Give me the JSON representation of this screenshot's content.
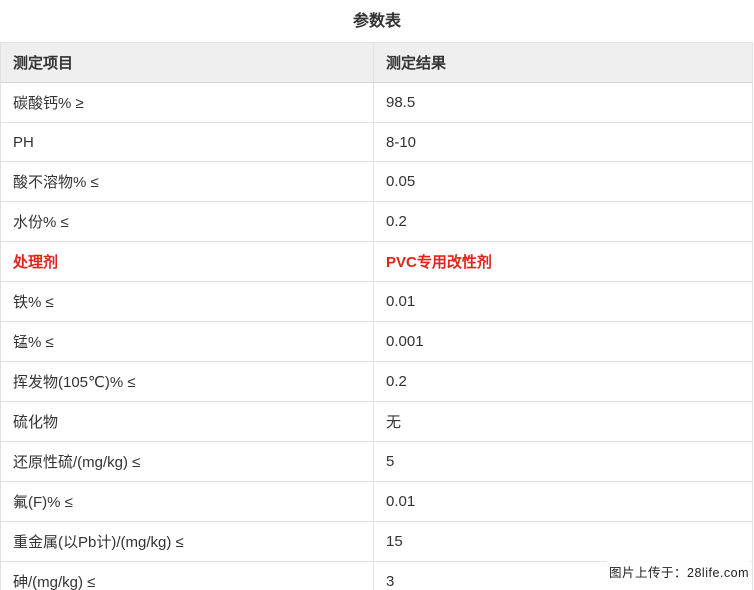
{
  "page": {
    "title": "参数表",
    "watermark": "图片上传于：28life.com"
  },
  "table": {
    "columns": [
      "测定项目",
      "测定结果"
    ],
    "highlight_color": "#e0251b",
    "rows": [
      {
        "item": "碳酸钙% ≥",
        "result": "98.5",
        "highlight": false
      },
      {
        "item": "PH",
        "result": "8-10",
        "highlight": false
      },
      {
        "item": "酸不溶物% ≤",
        "result": "0.05",
        "highlight": false
      },
      {
        "item": "水份% ≤",
        "result": "0.2",
        "highlight": false
      },
      {
        "item": "处理剂",
        "result": "PVC专用改性剂",
        "highlight": true
      },
      {
        "item": "铁% ≤",
        "result": "0.01",
        "highlight": false
      },
      {
        "item": "锰% ≤",
        "result": "0.001",
        "highlight": false
      },
      {
        "item": "挥发物(105℃)% ≤",
        "result": "0.2",
        "highlight": false
      },
      {
        "item": "硫化物",
        "result": "无",
        "highlight": false
      },
      {
        "item": "还原性硫/(mg/kg) ≤",
        "result": "5",
        "highlight": false
      },
      {
        "item": "氟(F)% ≤",
        "result": "0.01",
        "highlight": false
      },
      {
        "item": "重金属(以Pb计)/(mg/kg) ≤",
        "result": "15",
        "highlight": false
      },
      {
        "item": "砷/(mg/kg) ≤",
        "result": "3",
        "highlight": false
      }
    ]
  }
}
